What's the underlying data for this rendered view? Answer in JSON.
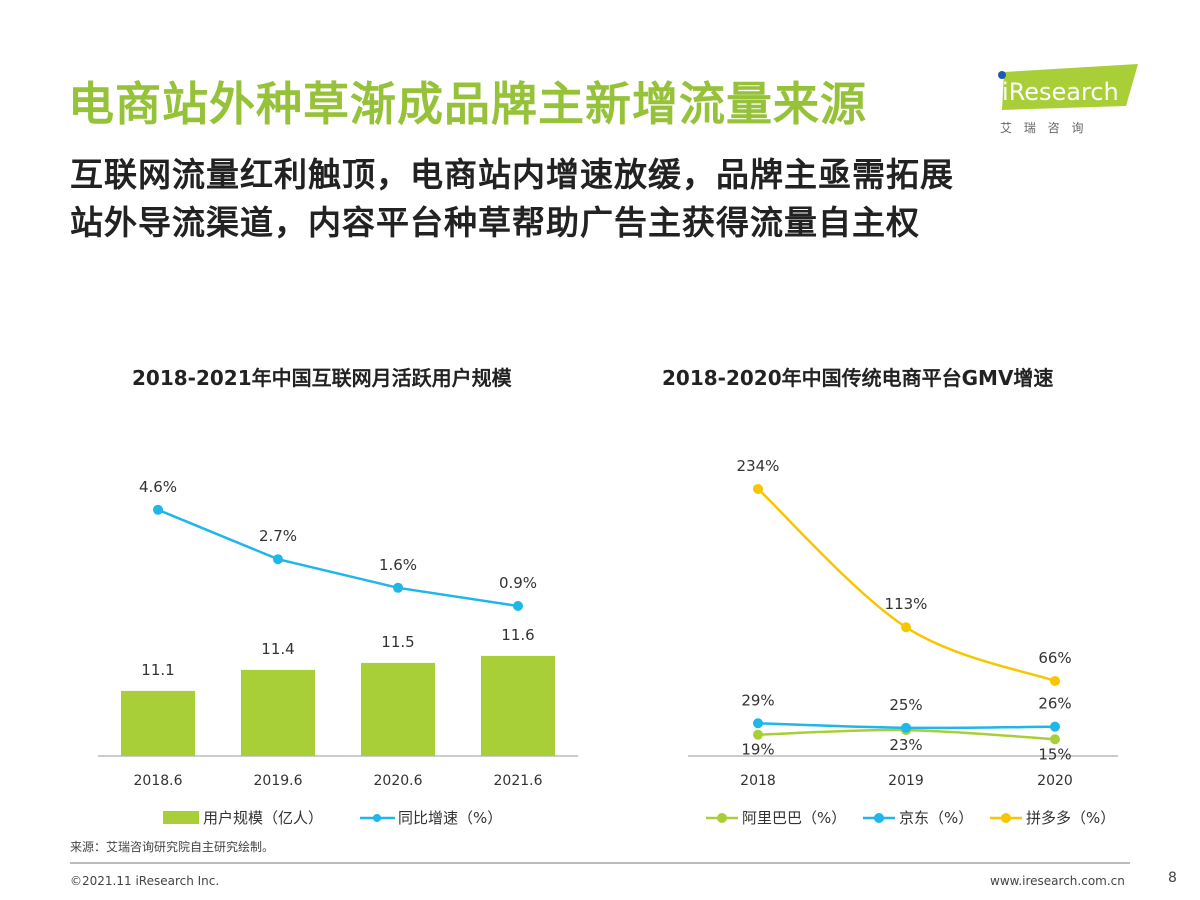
{
  "title": "电商站外种草渐成品牌主新增流量来源",
  "subtitle_lines": [
    "互联网流量红利触顶，电商站内增速放缓，品牌主亟需拓展",
    "站外导流渠道，内容平台种草帮助广告主获得流量自主权"
  ],
  "logo": {
    "text": "iResearch",
    "cn": "艾 瑞 咨 询"
  },
  "colors": {
    "title": "#96c23a",
    "bar": "#a8cf38",
    "blue": "#1fb6e9",
    "yellow": "#f7c600",
    "green": "#a8cf38"
  },
  "chart_data": [
    {
      "type": "bar+line",
      "title": "2018-2021年中国互联网月活跃用户规模",
      "categories": [
        "2018.6",
        "2019.6",
        "2020.6",
        "2021.6"
      ],
      "series": [
        {
          "name": "用户规模（亿人）",
          "type": "bar",
          "values": [
            11.1,
            11.4,
            11.5,
            11.6
          ]
        },
        {
          "name": "同比增速（%）",
          "type": "line",
          "values": [
            4.6,
            2.7,
            1.6,
            0.9
          ],
          "labels": [
            "4.6%",
            "2.7%",
            "1.6%",
            "0.9%"
          ]
        }
      ],
      "legend": "bottom",
      "grid": false
    },
    {
      "type": "line",
      "title": "2018-2020年中国传统电商平台GMV增速",
      "categories": [
        "2018",
        "2019",
        "2020"
      ],
      "series": [
        {
          "name": "阿里巴巴（%）",
          "values": [
            19,
            23,
            15
          ],
          "labels": [
            "19%",
            "23%",
            "15%"
          ]
        },
        {
          "name": "京东（%）",
          "values": [
            29,
            25,
            26
          ],
          "labels": [
            "29%",
            "25%",
            "26%"
          ]
        },
        {
          "name": "拼多多（%）",
          "values": [
            234,
            113,
            66
          ],
          "labels": [
            "234%",
            "113%",
            "66%"
          ]
        }
      ],
      "legend": "bottom",
      "grid": false
    }
  ],
  "footer": {
    "source": "来源：艾瑞咨询研究院自主研究绘制。",
    "copyright": "©2021.11 iResearch Inc.",
    "site": "www.iresearch.com.cn",
    "page": "8"
  }
}
